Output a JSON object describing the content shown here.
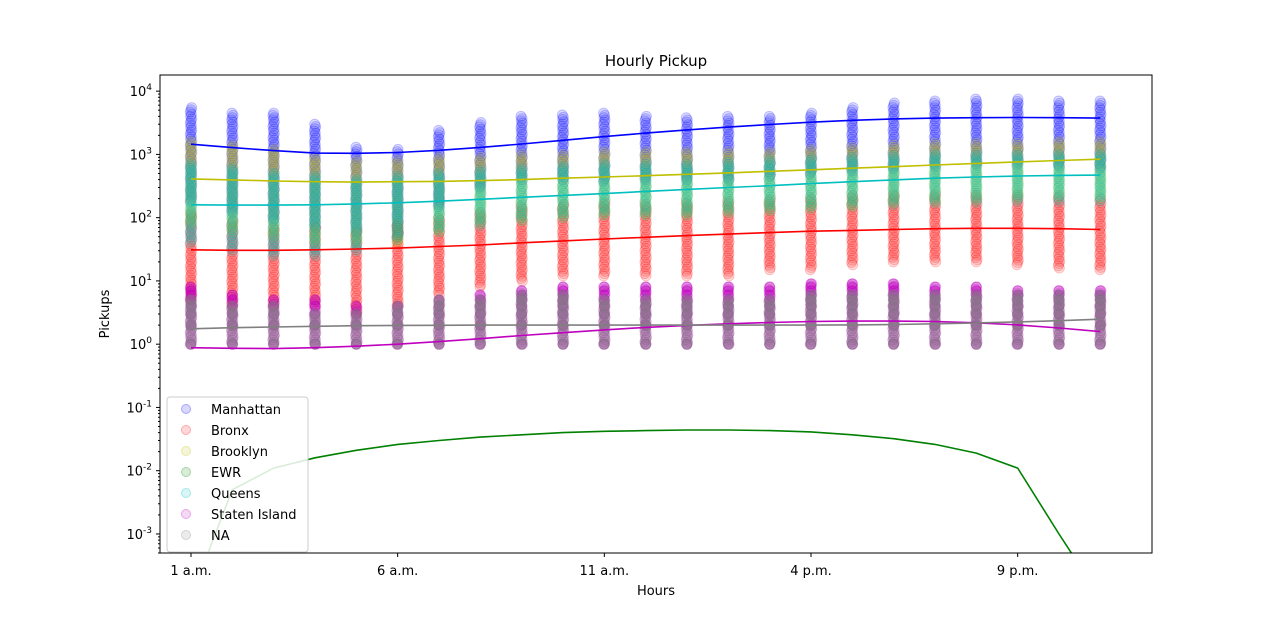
{
  "chart_data": {
    "type": "scatter",
    "title": "Hourly Pickup",
    "xlabel": "Hours",
    "ylabel": "Pickups",
    "yscale": "log",
    "ylim": [
      0.0005,
      18000
    ],
    "xlim": [
      -0.75,
      23.25
    ],
    "grid": false,
    "legend_position": "lower-left",
    "x_ticks": [
      {
        "value": 0,
        "label": "1 a.m."
      },
      {
        "value": 5,
        "label": "6 a.m."
      },
      {
        "value": 10,
        "label": "11 a.m."
      },
      {
        "value": 15,
        "label": "4 p.m."
      },
      {
        "value": 20,
        "label": "9 p.m."
      }
    ],
    "y_ticks": [
      {
        "value": 0.001,
        "label": "10^-3"
      },
      {
        "value": 0.01,
        "label": "10^-2"
      },
      {
        "value": 0.1,
        "label": "10^-1"
      },
      {
        "value": 1,
        "label": "10^0"
      },
      {
        "value": 10,
        "label": "10^1"
      },
      {
        "value": 100,
        "label": "10^2"
      },
      {
        "value": 1000,
        "label": "10^3"
      },
      {
        "value": 10000,
        "label": "10^4"
      }
    ],
    "hours": [
      0,
      1,
      2,
      3,
      4,
      5,
      6,
      7,
      8,
      9,
      10,
      11,
      12,
      13,
      14,
      15,
      16,
      17,
      18,
      19,
      20,
      21,
      22
    ],
    "series": [
      {
        "name": "Manhattan",
        "color": "#0000ff",
        "scatter_range": [
          [
            180,
            5500
          ],
          [
            120,
            4500
          ],
          [
            90,
            4500
          ],
          [
            70,
            3000
          ],
          [
            60,
            1300
          ],
          [
            50,
            1200
          ],
          [
            150,
            2400
          ],
          [
            300,
            3200
          ],
          [
            400,
            4000
          ],
          [
            400,
            4200
          ],
          [
            380,
            4500
          ],
          [
            400,
            4000
          ],
          [
            400,
            3800
          ],
          [
            400,
            4000
          ],
          [
            450,
            4000
          ],
          [
            500,
            4500
          ],
          [
            550,
            5500
          ],
          [
            600,
            6500
          ],
          [
            650,
            7000
          ],
          [
            700,
            7500
          ],
          [
            700,
            7500
          ],
          [
            650,
            7000
          ],
          [
            600,
            7000
          ]
        ],
        "trend": [
          1450,
          1280,
          1150,
          1050,
          1040,
          1070,
          1160,
          1290,
          1460,
          1670,
          1910,
          2170,
          2440,
          2700,
          2970,
          3230,
          3460,
          3640,
          3750,
          3810,
          3830,
          3810,
          3750
        ]
      },
      {
        "name": "Bronx",
        "color": "#ff0000",
        "scatter_range": [
          [
            5,
            120
          ],
          [
            4,
            90
          ],
          [
            4,
            70
          ],
          [
            4,
            70
          ],
          [
            3,
            60
          ],
          [
            4,
            80
          ],
          [
            6,
            100
          ],
          [
            8,
            120
          ],
          [
            10,
            150
          ],
          [
            12,
            160
          ],
          [
            12,
            170
          ],
          [
            12,
            160
          ],
          [
            12,
            170
          ],
          [
            12,
            180
          ],
          [
            15,
            190
          ],
          [
            15,
            200
          ],
          [
            18,
            220
          ],
          [
            20,
            230
          ],
          [
            20,
            230
          ],
          [
            20,
            230
          ],
          [
            18,
            230
          ],
          [
            16,
            220
          ],
          [
            15,
            200
          ]
        ],
        "trend": [
          31,
          30.5,
          30.5,
          31,
          32,
          33,
          35,
          37,
          40,
          43,
          46,
          49,
          52,
          55,
          58,
          61,
          63,
          65,
          67,
          68,
          68,
          67,
          65
        ]
      },
      {
        "name": "Brooklyn",
        "color": "#bfbf00",
        "scatter_range": [
          [
            80,
            1600
          ],
          [
            60,
            1400
          ],
          [
            50,
            1200
          ],
          [
            40,
            900
          ],
          [
            40,
            800
          ],
          [
            40,
            800
          ],
          [
            60,
            900
          ],
          [
            80,
            900
          ],
          [
            90,
            1000
          ],
          [
            100,
            1000
          ],
          [
            110,
            1100
          ],
          [
            110,
            1100
          ],
          [
            110,
            1100
          ],
          [
            120,
            1100
          ],
          [
            130,
            1100
          ],
          [
            140,
            1200
          ],
          [
            150,
            1300
          ],
          [
            170,
            1400
          ],
          [
            180,
            1500
          ],
          [
            190,
            1500
          ],
          [
            200,
            1500
          ],
          [
            210,
            1600
          ],
          [
            200,
            1600
          ]
        ],
        "trend": [
          410,
          395,
          380,
          370,
          365,
          370,
          375,
          385,
          400,
          420,
          440,
          460,
          485,
          510,
          540,
          570,
          605,
          640,
          680,
          720,
          760,
          800,
          840
        ]
      },
      {
        "name": "EWR",
        "color": "#008000",
        "scatter_range": [],
        "trend": [
          0.0001,
          0.005,
          0.011,
          0.016,
          0.021,
          0.026,
          0.03,
          0.034,
          0.037,
          0.04,
          0.042,
          0.043,
          0.044,
          0.044,
          0.043,
          0.041,
          0.037,
          0.032,
          0.026,
          0.019,
          0.011,
          0.001,
          0.0001
        ]
      },
      {
        "name": "Queens",
        "color": "#00bfbf",
        "scatter_range": [
          [
            40,
            700
          ],
          [
            30,
            600
          ],
          [
            25,
            500
          ],
          [
            25,
            450
          ],
          [
            30,
            400
          ],
          [
            45,
            450
          ],
          [
            60,
            500
          ],
          [
            75,
            550
          ],
          [
            90,
            600
          ],
          [
            100,
            650
          ],
          [
            110,
            700
          ],
          [
            110,
            700
          ],
          [
            110,
            700
          ],
          [
            120,
            750
          ],
          [
            130,
            800
          ],
          [
            140,
            850
          ],
          [
            150,
            900
          ],
          [
            160,
            950
          ],
          [
            170,
            1000
          ],
          [
            175,
            1000
          ],
          [
            180,
            1000
          ],
          [
            180,
            1000
          ],
          [
            180,
            1000
          ]
        ],
        "trend": [
          160,
          158,
          158,
          160,
          165,
          172,
          182,
          195,
          210,
          225,
          240,
          260,
          280,
          300,
          320,
          345,
          370,
          395,
          420,
          440,
          455,
          465,
          470
        ]
      },
      {
        "name": "Staten Island",
        "color": "#bf00bf",
        "scatter_range": [
          [
            1,
            8
          ],
          [
            1,
            6
          ],
          [
            1,
            5
          ],
          [
            1,
            5
          ],
          [
            1,
            4
          ],
          [
            1,
            4
          ],
          [
            1,
            5
          ],
          [
            1,
            6
          ],
          [
            1,
            7
          ],
          [
            1,
            8
          ],
          [
            1,
            8
          ],
          [
            1,
            8
          ],
          [
            1,
            8
          ],
          [
            1,
            8
          ],
          [
            1,
            8
          ],
          [
            1,
            9
          ],
          [
            1,
            9
          ],
          [
            1,
            9
          ],
          [
            1,
            8
          ],
          [
            1,
            8
          ],
          [
            1,
            7
          ],
          [
            1,
            7
          ],
          [
            1,
            7
          ]
        ],
        "trend": [
          0.88,
          0.86,
          0.85,
          0.88,
          0.93,
          1.0,
          1.1,
          1.22,
          1.37,
          1.52,
          1.68,
          1.84,
          1.98,
          2.1,
          2.2,
          2.28,
          2.32,
          2.32,
          2.28,
          2.18,
          2.02,
          1.8,
          1.58
        ]
      },
      {
        "name": "NA",
        "color": "#808080",
        "scatter_range": [
          [
            1,
            5
          ],
          [
            1,
            4
          ],
          [
            1,
            4
          ],
          [
            1,
            3
          ],
          [
            1,
            3
          ],
          [
            1,
            4
          ],
          [
            1,
            5
          ],
          [
            1,
            5
          ],
          [
            1,
            6
          ],
          [
            1,
            6
          ],
          [
            1,
            5
          ],
          [
            1,
            5
          ],
          [
            1,
            5
          ],
          [
            1,
            5
          ],
          [
            1,
            5
          ],
          [
            1,
            6
          ],
          [
            1,
            6
          ],
          [
            1,
            6
          ],
          [
            1,
            6
          ],
          [
            1,
            6
          ],
          [
            1,
            6
          ],
          [
            1,
            6
          ],
          [
            1,
            6
          ]
        ],
        "trend": [
          1.75,
          1.82,
          1.87,
          1.92,
          1.96,
          1.98,
          1.99,
          2.0,
          2.0,
          2.0,
          2.0,
          2.0,
          2.0,
          2.0,
          2.0,
          2.0,
          2.02,
          2.05,
          2.1,
          2.17,
          2.25,
          2.35,
          2.48
        ]
      }
    ]
  }
}
